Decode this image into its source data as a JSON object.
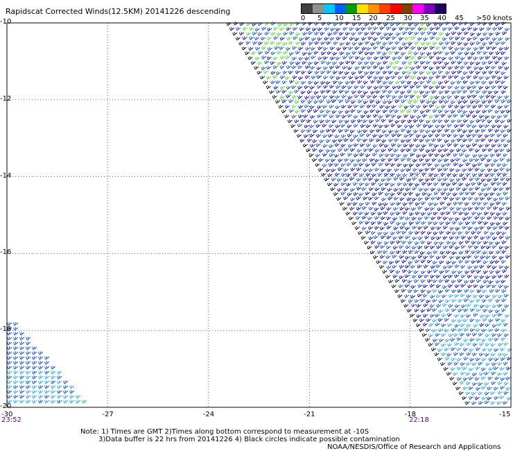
{
  "title": "Rapidscat Corrected Winds(12.5KM) 20141226 descending",
  "legend": {
    "labels": [
      "0",
      "5",
      "10",
      "15",
      "20",
      "25",
      "30",
      "35",
      "40",
      "45",
      ">50 knots"
    ],
    "colors": [
      "#404040",
      "#909090",
      "#00c8ff",
      "#0060ff",
      "#00a000",
      "#ffe000",
      "#ff9000",
      "#ff4000",
      "#ff0000",
      "#804000",
      "#ff00ff",
      "#8000c0",
      "#200060"
    ]
  },
  "chart_data": {
    "type": "scatter",
    "title": "Rapidscat Corrected Winds(12.5KM) 20141226 descending",
    "xlabel": "",
    "ylabel": "",
    "xlim": [
      -30,
      -15
    ],
    "ylim": [
      -20,
      -10
    ],
    "x_ticks": [
      "-30",
      "-27",
      "-24",
      "-21",
      "-18",
      "-15"
    ],
    "y_ticks": [
      "-10",
      "-12",
      "-14",
      "-16",
      "-18",
      "-20"
    ],
    "grid": true,
    "swath_main": {
      "lon_top": -23.4,
      "lon_bottom": -16.2,
      "lat_top": -10,
      "lat_bottom": -20
    },
    "swath_corner": {
      "lon_max_bottom": -27.6,
      "lat_top": -17.8
    },
    "barb_colors": {
      "dark_blue": "#0000a0",
      "blue": "#0044cc",
      "cyan": "#1aa6d6",
      "green": "#44dd22",
      "edge": "#000000"
    }
  },
  "times": {
    "left": "23:52",
    "right": "22:18"
  },
  "notes": {
    "line1": "Note: 1) Times are GMT 2)Times along bottom correspond to measurement at -10S",
    "line2": "3)Data buffer is 22 hrs from 20141226 4) Black circles indicate possible contamination",
    "line3": "NOAA/NESDIS/Office of Research and Applications"
  }
}
